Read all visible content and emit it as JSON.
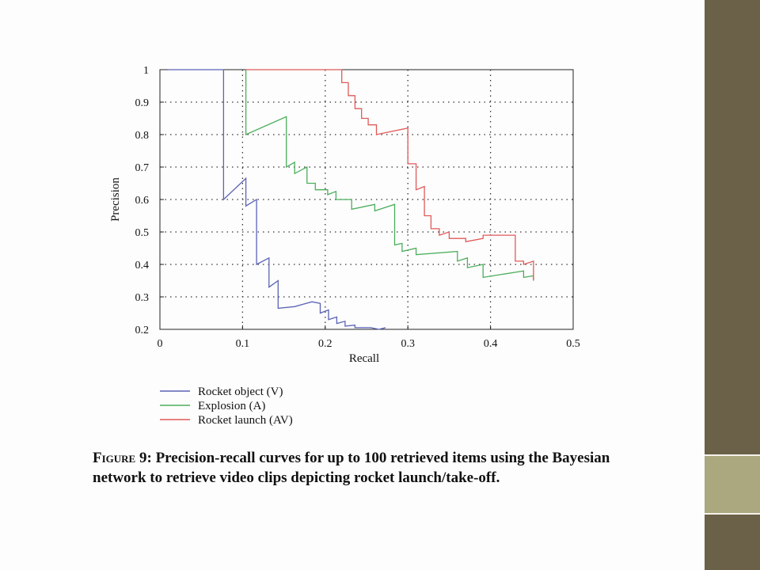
{
  "chart_data": {
    "type": "line",
    "xlabel": "Recall",
    "ylabel": "Precision",
    "xlim": [
      0,
      0.5
    ],
    "ylim": [
      0.2,
      1
    ],
    "xticks": [
      "0",
      "0.1",
      "0.2",
      "0.3",
      "0.4",
      "0.5"
    ],
    "yticks": [
      "0.2",
      "0.3",
      "0.4",
      "0.5",
      "0.6",
      "0.7",
      "0.8",
      "0.9",
      "1"
    ],
    "grid": true,
    "legend_position": "below",
    "series": [
      {
        "name": "Rocket object (V)",
        "color": "#5b63b5",
        "points": [
          [
            0.01,
            1
          ],
          [
            0.077,
            1
          ],
          [
            0.077,
            0.6
          ],
          [
            0.104,
            0.665
          ],
          [
            0.104,
            0.58
          ],
          [
            0.117,
            0.6
          ],
          [
            0.117,
            0.4
          ],
          [
            0.132,
            0.42
          ],
          [
            0.132,
            0.33
          ],
          [
            0.143,
            0.35
          ],
          [
            0.143,
            0.265
          ],
          [
            0.163,
            0.27
          ],
          [
            0.184,
            0.285
          ],
          [
            0.194,
            0.28
          ],
          [
            0.194,
            0.25
          ],
          [
            0.204,
            0.26
          ],
          [
            0.204,
            0.23
          ],
          [
            0.214,
            0.238
          ],
          [
            0.214,
            0.218
          ],
          [
            0.224,
            0.225
          ],
          [
            0.224,
            0.21
          ],
          [
            0.236,
            0.213
          ],
          [
            0.236,
            0.205
          ],
          [
            0.255,
            0.205
          ],
          [
            0.265,
            0.2
          ],
          [
            0.273,
            0.205
          ]
        ]
      },
      {
        "name": "Explosion (A)",
        "color": "#4cae5c",
        "points": [
          [
            0.104,
            1
          ],
          [
            0.104,
            0.8
          ],
          [
            0.153,
            0.855
          ],
          [
            0.153,
            0.7
          ],
          [
            0.163,
            0.715
          ],
          [
            0.163,
            0.68
          ],
          [
            0.178,
            0.7
          ],
          [
            0.178,
            0.65
          ],
          [
            0.188,
            0.65
          ],
          [
            0.188,
            0.63
          ],
          [
            0.203,
            0.63
          ],
          [
            0.203,
            0.615
          ],
          [
            0.213,
            0.625
          ],
          [
            0.213,
            0.6
          ],
          [
            0.232,
            0.6
          ],
          [
            0.232,
            0.57
          ],
          [
            0.26,
            0.585
          ],
          [
            0.26,
            0.565
          ],
          [
            0.284,
            0.585
          ],
          [
            0.284,
            0.46
          ],
          [
            0.293,
            0.465
          ],
          [
            0.293,
            0.44
          ],
          [
            0.31,
            0.45
          ],
          [
            0.31,
            0.43
          ],
          [
            0.36,
            0.44
          ],
          [
            0.36,
            0.41
          ],
          [
            0.372,
            0.42
          ],
          [
            0.372,
            0.39
          ],
          [
            0.391,
            0.4
          ],
          [
            0.391,
            0.36
          ],
          [
            0.44,
            0.38
          ],
          [
            0.44,
            0.36
          ],
          [
            0.452,
            0.365
          ],
          [
            0.452,
            0.35
          ]
        ]
      },
      {
        "name": "Rocket launch (AV)",
        "color": "#e05a5a",
        "points": [
          [
            0.104,
            1
          ],
          [
            0.22,
            1
          ],
          [
            0.22,
            0.96
          ],
          [
            0.228,
            0.96
          ],
          [
            0.228,
            0.92
          ],
          [
            0.236,
            0.92
          ],
          [
            0.236,
            0.88
          ],
          [
            0.244,
            0.88
          ],
          [
            0.244,
            0.85
          ],
          [
            0.252,
            0.85
          ],
          [
            0.252,
            0.83
          ],
          [
            0.262,
            0.83
          ],
          [
            0.262,
            0.8
          ],
          [
            0.3,
            0.82
          ],
          [
            0.3,
            0.71
          ],
          [
            0.31,
            0.71
          ],
          [
            0.31,
            0.63
          ],
          [
            0.32,
            0.64
          ],
          [
            0.32,
            0.55
          ],
          [
            0.328,
            0.55
          ],
          [
            0.328,
            0.51
          ],
          [
            0.338,
            0.51
          ],
          [
            0.338,
            0.49
          ],
          [
            0.35,
            0.5
          ],
          [
            0.35,
            0.48
          ],
          [
            0.37,
            0.48
          ],
          [
            0.37,
            0.47
          ],
          [
            0.391,
            0.48
          ],
          [
            0.391,
            0.49
          ],
          [
            0.43,
            0.49
          ],
          [
            0.43,
            0.41
          ],
          [
            0.44,
            0.41
          ],
          [
            0.44,
            0.4
          ],
          [
            0.452,
            0.41
          ],
          [
            0.452,
            0.35
          ]
        ]
      }
    ]
  },
  "caption": {
    "figure_label": "Figure 9:",
    "text": "Precision-recall curves for up to 100 retrieved items using the Bayesian network to retrieve video clips depicting rocket launch/take-off."
  }
}
